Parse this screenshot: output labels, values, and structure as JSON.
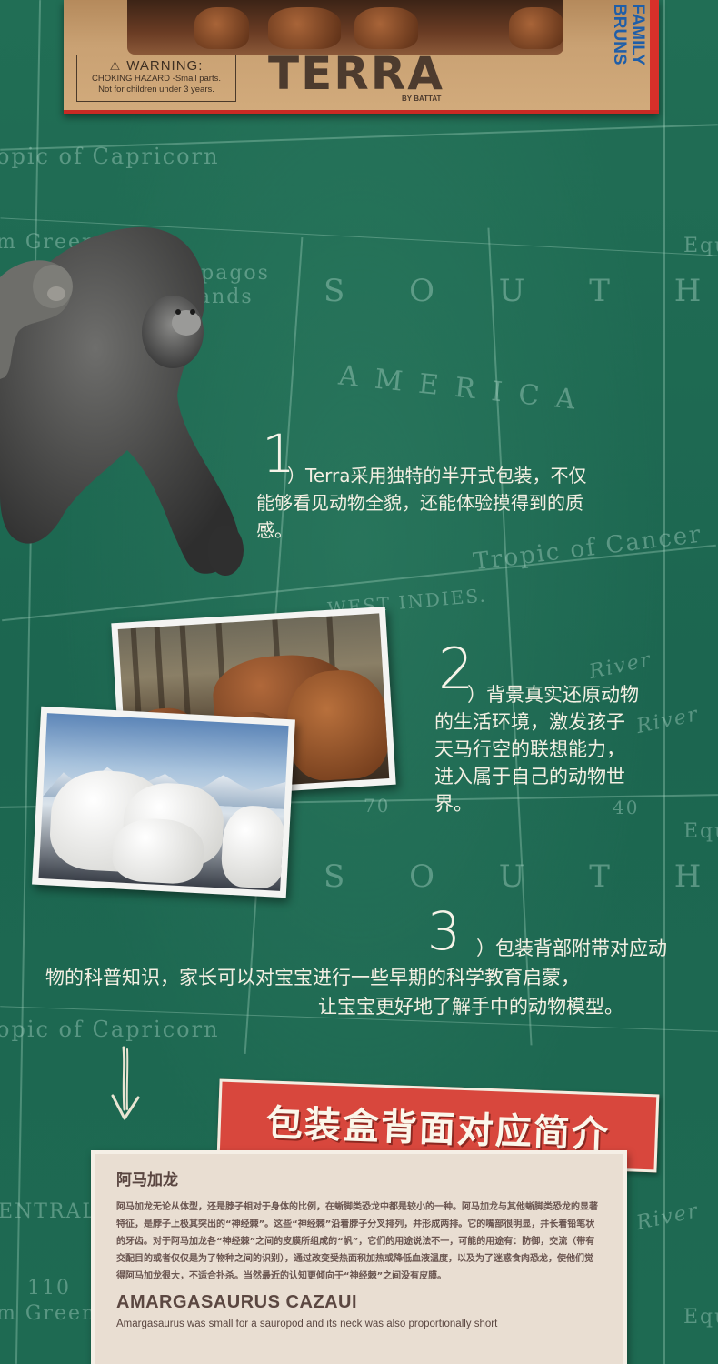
{
  "product_box": {
    "warning_title": "WARNING:",
    "warning_line1": "CHOKING HAZARD -Small parts.",
    "warning_line2": "Not for children under 3 years.",
    "brand": "TERRA",
    "by": "BY BATTAT",
    "family_text": "FAMILY BRUNS"
  },
  "map_labels": {
    "capricorn_top": "opic of Capricorn",
    "greenwich_top": "m Green",
    "galapagos": "apagos",
    "islands": "ands",
    "south": "S O U T H",
    "america": "AMERICA",
    "tropic_cancer": "Tropic of Cancer",
    "west_indies": "WEST INDIES.",
    "river": "River",
    "equ": "Equ",
    "capricorn_bottom": "opic of Capricorn",
    "entral": "ENTRAL",
    "greenwich_bottom": "m Green",
    "num_110": "110",
    "num_70": "70",
    "num_40": "40"
  },
  "features": [
    {
      "number": "1",
      "lines": [
        "）Terra采用独特的半开式包装，不仅",
        "能够看见动物全貌，还能体验摸得到的质",
        "感。"
      ]
    },
    {
      "number": "2",
      "lines": [
        "）背景真实还原动物",
        "的生活环境，激发孩子",
        "天马行空的联想能力，",
        "进入属于自己的动物世",
        "界。"
      ]
    },
    {
      "number": "3",
      "lines": [
        "）包装背部附带对应动",
        "物的科普知识，家长可以对宝宝进行一些早期的科学教育启蒙，",
        "让宝宝更好地了解手中的动物模型。"
      ]
    }
  ],
  "banner": {
    "title": "包装盒背面对应简介"
  },
  "card": {
    "title": "阿马加龙",
    "body": "阿马加龙无论从体型，还是脖子相对于身体的比例，在蜥脚类恐龙中都是较小的一种。阿马加龙与其他蜥脚类恐龙的显著特征，是脖子上极其突出的“神经棘”。这些“神经棘”沿着脖子分叉排列，并形成两排。它的嘴部很明显，并长着铅笔状的牙齿。对于阿马加龙各“神经棘”之间的皮膜所组成的“帆”，它们的用途说法不一，可能的用途有：防御，交流（带有交配目的或者仅仅是为了物种之间的识别），通过改变受热面积加热或降低血液温度，以及为了迷惑食肉恐龙，使他们觉得阿马加龙很大，不适合扑杀。当然最近的认知更倾向于“神经棘”之间没有皮膜。",
    "en_title": "AMARGASAURUS CAZAUI",
    "en_body": "Amargasaurus was small for a sauropod and its neck was also proportionally short"
  },
  "colors": {
    "background": "#1f6a52",
    "banner": "#d8473d",
    "card": "#e9ded2",
    "family_blue": "#1f5ea8"
  }
}
